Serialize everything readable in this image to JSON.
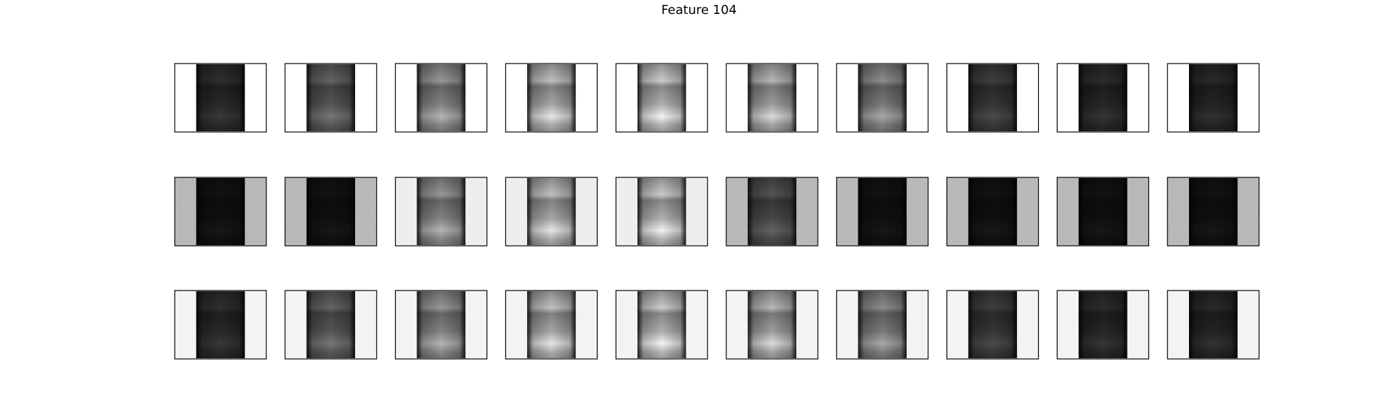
{
  "title": "Feature 104"
}
